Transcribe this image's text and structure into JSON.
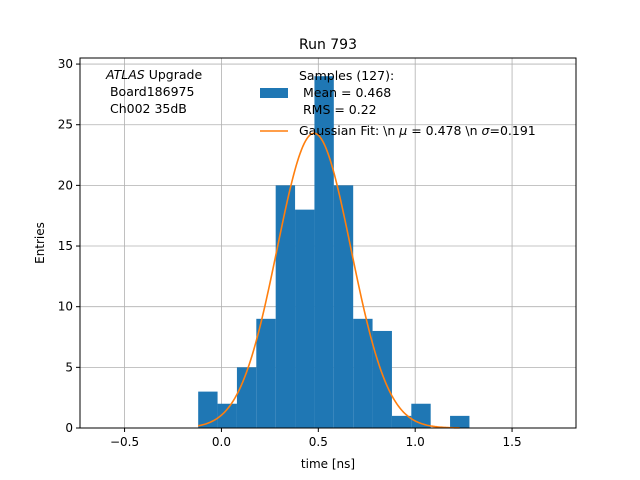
{
  "chart_data": {
    "type": "bar",
    "title": "Run 793",
    "xlabel": "time [ns]",
    "ylabel": "Entries",
    "xlim": [
      -0.73,
      1.83
    ],
    "ylim": [
      0,
      30.5
    ],
    "grid": true,
    "x_ticks": [
      -0.5,
      0.0,
      0.5,
      1.0,
      1.5
    ],
    "x_tick_labels": [
      "−0.5",
      "0.0",
      "0.5",
      "1.0",
      "1.5"
    ],
    "y_ticks": [
      0,
      5,
      10,
      15,
      20,
      25,
      30
    ],
    "y_tick_labels": [
      "0",
      "5",
      "10",
      "15",
      "20",
      "25",
      "30"
    ],
    "bin_edges": [
      -0.12,
      -0.02,
      0.08,
      0.18,
      0.28,
      0.38,
      0.48,
      0.58,
      0.68,
      0.78,
      0.88,
      0.98,
      1.08,
      1.18,
      1.28
    ],
    "counts": [
      3,
      2,
      5,
      9,
      20,
      18,
      29,
      20,
      9,
      8,
      1,
      2,
      0,
      1
    ],
    "bar_color": "#1f77b4",
    "fit": {
      "type": "gaussian",
      "amplitude": 24.3,
      "mean": 0.478,
      "sigma": 0.191,
      "x_range": [
        -0.12,
        1.23
      ],
      "color": "#ff7f0e"
    },
    "annotation": {
      "line1_italic": "ATLAS",
      "line1_rest": " Upgrade",
      "line2": " Board186975",
      "line3": " Ch002 35dB"
    },
    "legend": {
      "placement": "top-right",
      "samples_lines": [
        "Samples (127):",
        " Mean = 0.468",
        " RMS = 0.22"
      ],
      "fit_label_prefix": "Gaussian Fit: \\n ",
      "fit_mu_symbol": "μ",
      "fit_mu_value": " = 0.478 \\n ",
      "fit_sigma_symbol": "σ",
      "fit_sigma_value": "=0.191"
    }
  }
}
